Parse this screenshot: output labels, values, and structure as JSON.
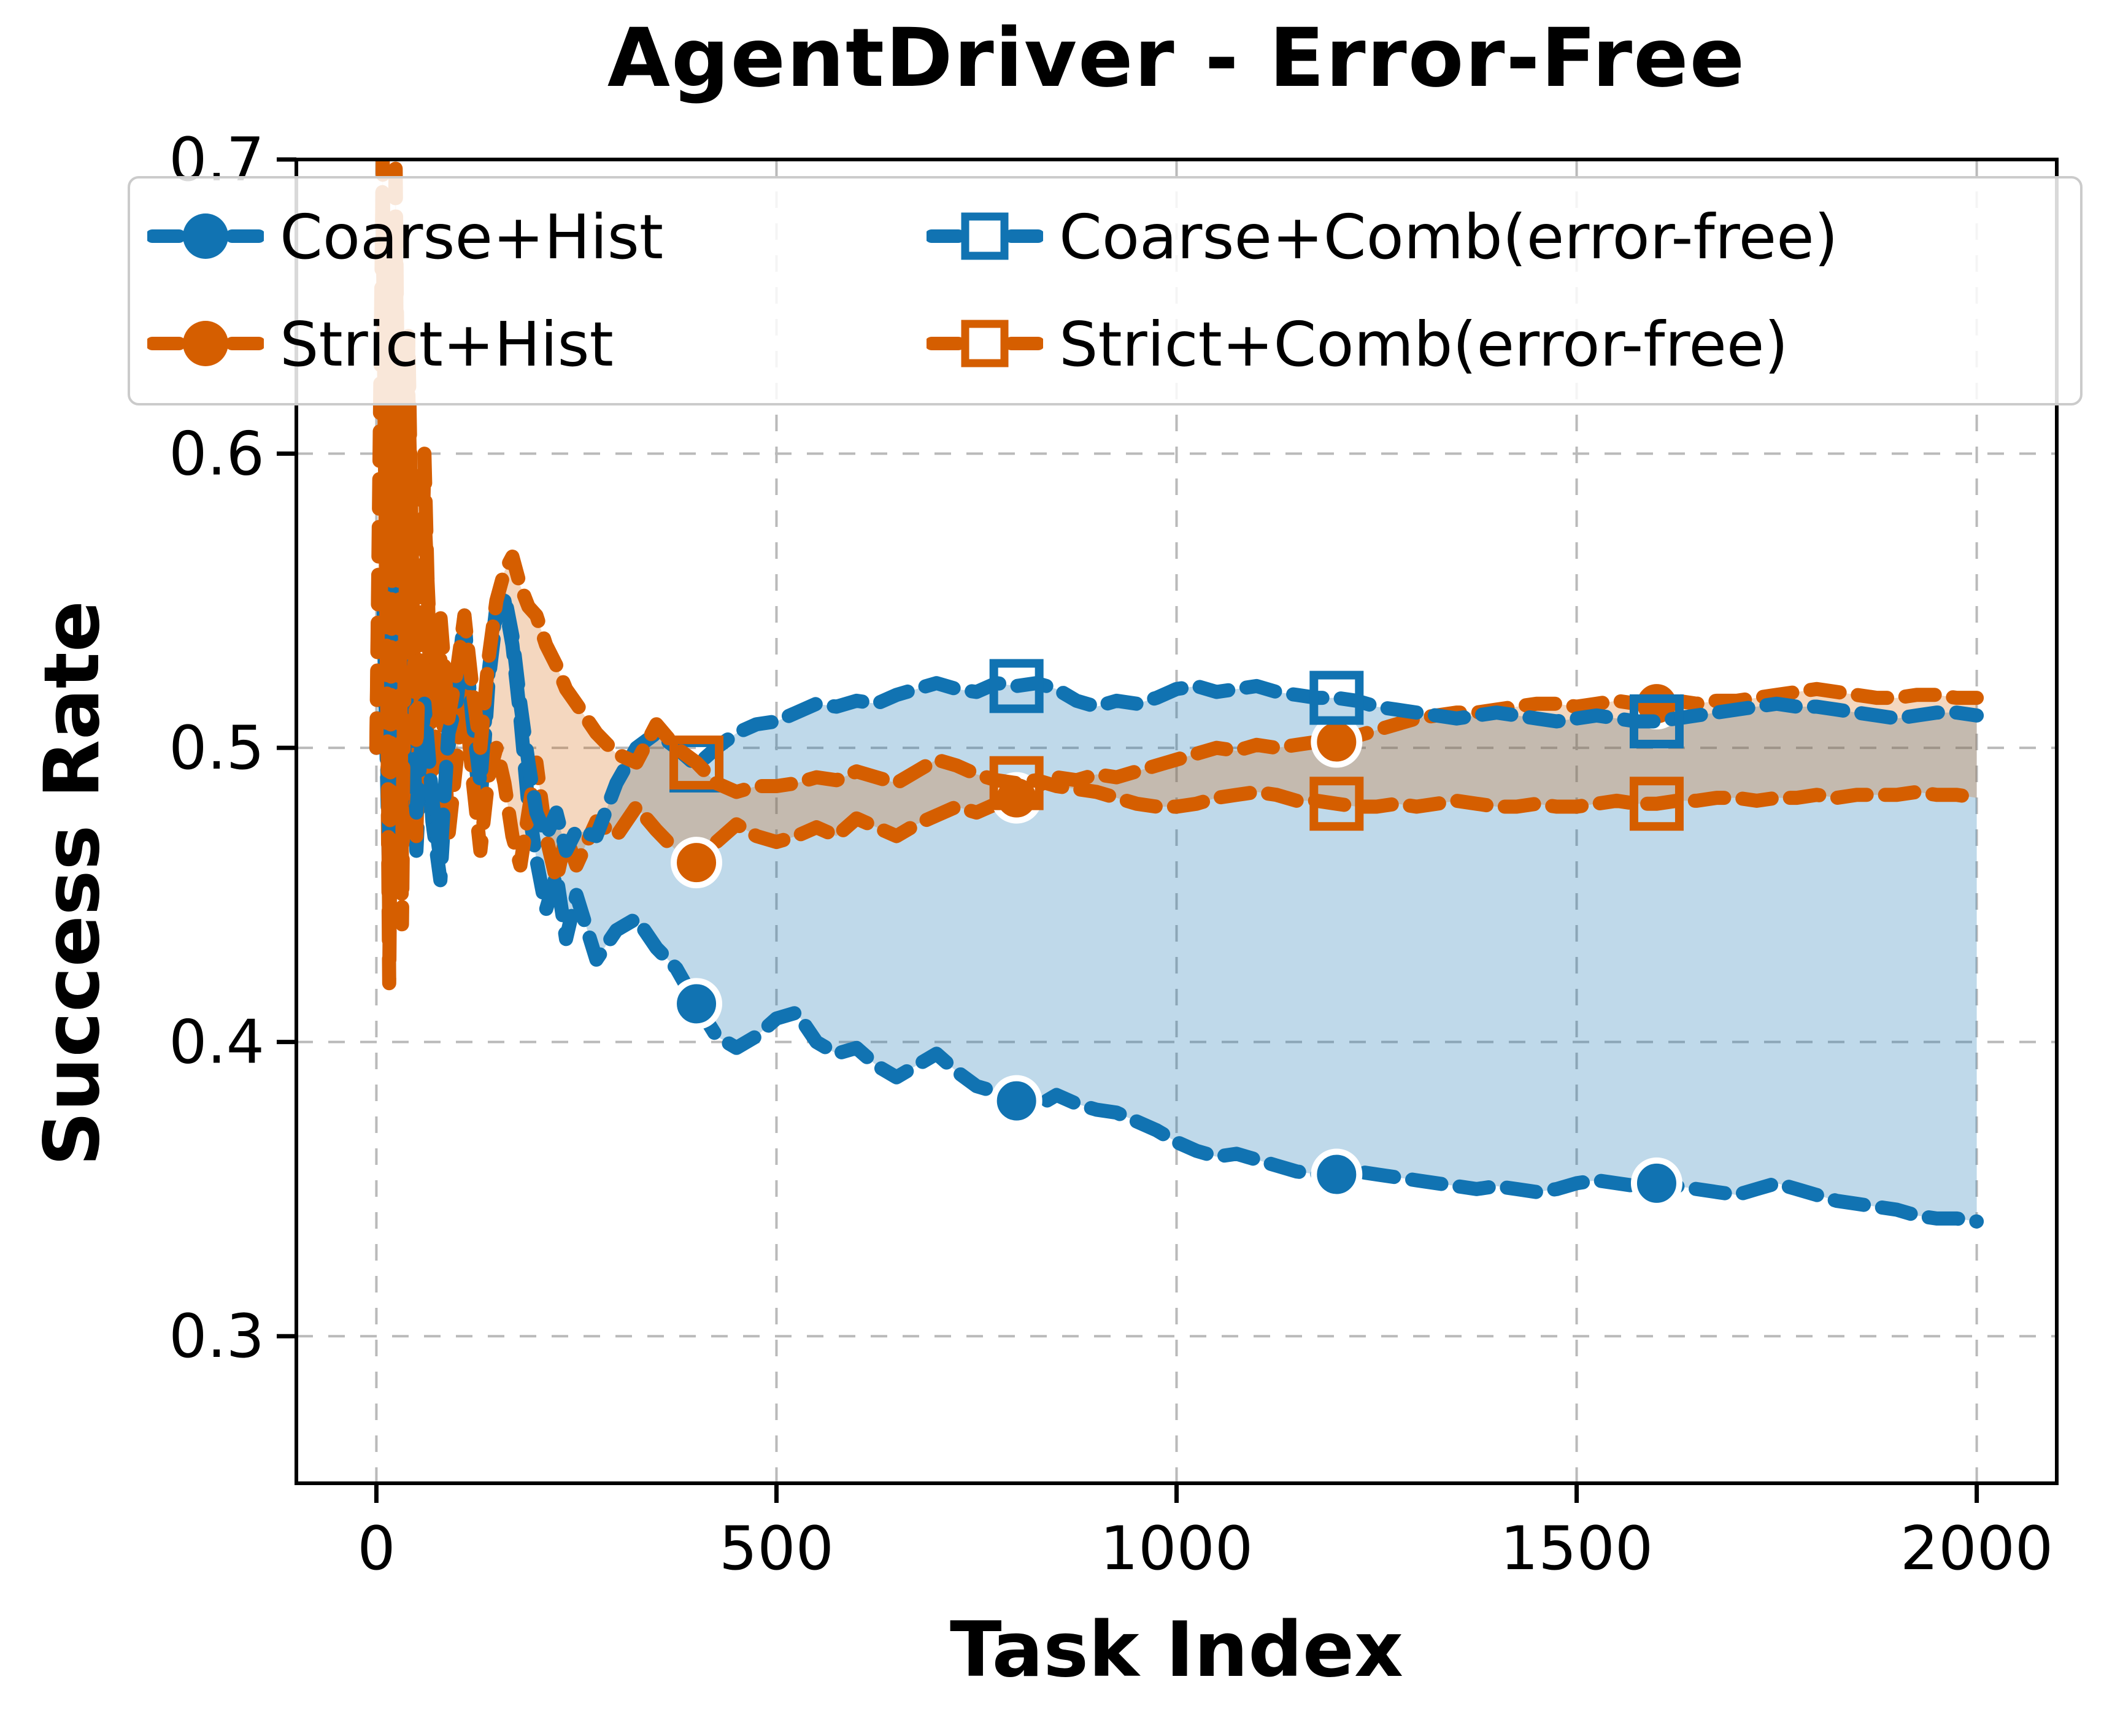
{
  "title": "AgentDriver - Error-Free",
  "axes": {
    "xlabel": "Task Index",
    "ylabel": "Success Rate",
    "xlim": [
      -100,
      2100
    ],
    "ylim": [
      0.25,
      0.7
    ],
    "xticks": [
      0,
      500,
      1000,
      1500,
      2000
    ],
    "yticks": [
      0.3,
      0.4,
      0.5,
      0.6,
      0.7
    ],
    "grid": true
  },
  "colors": {
    "blue": "#1173b2",
    "orange": "#d55e00",
    "blue_fill": "rgba(17,115,178,0.27)",
    "orange_fill": "rgba(213,94,0,0.25)",
    "grid": "#bababa",
    "spine": "#000000",
    "legend_border": "#cbcbcb"
  },
  "legend": {
    "items": [
      {
        "label": "Coarse+Hist",
        "color": "#1173b2",
        "marker": "circle"
      },
      {
        "label": "Strict+Hist",
        "color": "#d55e00",
        "marker": "circle"
      },
      {
        "label": "Coarse+Comb(error-free)",
        "color": "#1173b2",
        "marker": "square"
      },
      {
        "label": "Strict+Comb(error-free)",
        "color": "#d55e00",
        "marker": "square"
      }
    ]
  },
  "chart_data": {
    "type": "line",
    "title": "AgentDriver - Error-Free",
    "xlabel": "Task Index",
    "ylabel": "Success Rate",
    "xlim": [
      -100,
      2100
    ],
    "ylim": [
      0.25,
      0.7
    ],
    "legend_position": "upper center, 2 columns",
    "x": [
      0,
      8,
      16,
      24,
      32,
      40,
      50,
      60,
      70,
      80,
      90,
      100,
      110,
      120,
      130,
      140,
      150,
      160,
      170,
      180,
      190,
      200,
      212,
      225,
      237,
      250,
      275,
      300,
      325,
      350,
      375,
      400,
      425,
      450,
      475,
      500,
      525,
      550,
      575,
      600,
      625,
      650,
      675,
      700,
      725,
      750,
      775,
      800,
      825,
      850,
      875,
      900,
      925,
      950,
      975,
      1000,
      1025,
      1050,
      1075,
      1100,
      1125,
      1150,
      1175,
      1200,
      1225,
      1250,
      1275,
      1300,
      1325,
      1350,
      1375,
      1400,
      1425,
      1450,
      1475,
      1500,
      1525,
      1550,
      1575,
      1600,
      1625,
      1650,
      1675,
      1700,
      1725,
      1750,
      1775,
      1800,
      1825,
      1850,
      1875,
      1900,
      1925,
      1950,
      1975,
      2000
    ],
    "series": [
      {
        "name": "Coarse+Hist",
        "color": "#1173b2",
        "marker": "circle",
        "markers_at": [
          400,
          800,
          1200,
          1600
        ],
        "values": [
          0.5,
          0.56,
          0.455,
          0.585,
          0.47,
          0.54,
          0.465,
          0.52,
          0.475,
          0.455,
          0.5,
          0.52,
          0.545,
          0.505,
          0.48,
          0.522,
          0.545,
          0.55,
          0.535,
          0.51,
          0.48,
          0.462,
          0.445,
          0.457,
          0.435,
          0.45,
          0.428,
          0.438,
          0.442,
          0.432,
          0.425,
          0.413,
          0.402,
          0.398,
          0.402,
          0.408,
          0.41,
          0.4,
          0.396,
          0.398,
          0.392,
          0.388,
          0.392,
          0.396,
          0.39,
          0.385,
          0.383,
          0.38,
          0.378,
          0.382,
          0.379,
          0.377,
          0.376,
          0.373,
          0.37,
          0.366,
          0.363,
          0.361,
          0.362,
          0.36,
          0.358,
          0.356,
          0.355,
          0.355,
          0.356,
          0.355,
          0.354,
          0.353,
          0.352,
          0.351,
          0.35,
          0.351,
          0.35,
          0.349,
          0.35,
          0.352,
          0.353,
          0.352,
          0.351,
          0.352,
          0.351,
          0.35,
          0.349,
          0.348,
          0.35,
          0.352,
          0.35,
          0.348,
          0.346,
          0.345,
          0.344,
          0.343,
          0.341,
          0.34,
          0.34,
          0.339
        ]
      },
      {
        "name": "Strict+Hist",
        "color": "#d55e00",
        "marker": "circle",
        "markers_at": [
          400,
          800,
          1200,
          1600
        ],
        "values": [
          0.5,
          0.7,
          0.42,
          0.68,
          0.44,
          0.64,
          0.47,
          0.6,
          0.49,
          0.53,
          0.47,
          0.495,
          0.52,
          0.49,
          0.465,
          0.49,
          0.5,
          0.488,
          0.47,
          0.46,
          0.478,
          0.495,
          0.47,
          0.455,
          0.47,
          0.46,
          0.475,
          0.47,
          0.48,
          0.472,
          0.465,
          0.461,
          0.468,
          0.474,
          0.47,
          0.468,
          0.47,
          0.473,
          0.47,
          0.476,
          0.473,
          0.47,
          0.474,
          0.477,
          0.48,
          0.478,
          0.481,
          0.483,
          0.487,
          0.49,
          0.489,
          0.491,
          0.49,
          0.492,
          0.494,
          0.496,
          0.498,
          0.5,
          0.499,
          0.501,
          0.5,
          0.501,
          0.502,
          0.502,
          0.504,
          0.506,
          0.508,
          0.51,
          0.511,
          0.512,
          0.512,
          0.513,
          0.514,
          0.515,
          0.515,
          0.514,
          0.515,
          0.516,
          0.515,
          0.515,
          0.516,
          0.515,
          0.516,
          0.516,
          0.517,
          0.518,
          0.519,
          0.52,
          0.519,
          0.518,
          0.517,
          0.517,
          0.518,
          0.518,
          0.517,
          0.517
        ]
      },
      {
        "name": "Coarse+Comb(error-free)",
        "color": "#1173b2",
        "marker": "square",
        "markers_at": [
          400,
          800,
          1200,
          1600
        ],
        "values": [
          0.5,
          0.545,
          0.47,
          0.56,
          0.48,
          0.53,
          0.478,
          0.515,
          0.482,
          0.462,
          0.505,
          0.515,
          0.54,
          0.51,
          0.488,
          0.525,
          0.548,
          0.552,
          0.538,
          0.515,
          0.495,
          0.478,
          0.47,
          0.478,
          0.465,
          0.472,
          0.47,
          0.488,
          0.5,
          0.505,
          0.5,
          0.494,
          0.5,
          0.505,
          0.508,
          0.509,
          0.512,
          0.515,
          0.514,
          0.516,
          0.515,
          0.518,
          0.52,
          0.522,
          0.52,
          0.519,
          0.522,
          0.521,
          0.522,
          0.52,
          0.516,
          0.514,
          0.516,
          0.515,
          0.517,
          0.52,
          0.521,
          0.519,
          0.52,
          0.521,
          0.519,
          0.518,
          0.517,
          0.517,
          0.516,
          0.514,
          0.513,
          0.512,
          0.511,
          0.51,
          0.511,
          0.512,
          0.511,
          0.51,
          0.509,
          0.51,
          0.511,
          0.51,
          0.509,
          0.509,
          0.51,
          0.511,
          0.512,
          0.513,
          0.514,
          0.515,
          0.514,
          0.514,
          0.513,
          0.512,
          0.511,
          0.51,
          0.511,
          0.512,
          0.512,
          0.511
        ]
      },
      {
        "name": "Strict+Comb(error-free)",
        "color": "#d55e00",
        "marker": "square",
        "markers_at": [
          400,
          800,
          1200,
          1600
        ],
        "values": [
          0.5,
          0.68,
          0.44,
          0.7,
          0.46,
          0.62,
          0.5,
          0.58,
          0.52,
          0.545,
          0.51,
          0.525,
          0.545,
          0.52,
          0.5,
          0.53,
          0.55,
          0.56,
          0.565,
          0.555,
          0.548,
          0.545,
          0.535,
          0.528,
          0.52,
          0.515,
          0.505,
          0.498,
          0.495,
          0.508,
          0.5,
          0.495,
          0.488,
          0.485,
          0.487,
          0.487,
          0.488,
          0.49,
          0.489,
          0.492,
          0.49,
          0.488,
          0.492,
          0.496,
          0.494,
          0.491,
          0.489,
          0.488,
          0.489,
          0.487,
          0.486,
          0.485,
          0.483,
          0.481,
          0.48,
          0.48,
          0.481,
          0.483,
          0.484,
          0.485,
          0.484,
          0.482,
          0.482,
          0.481,
          0.48,
          0.48,
          0.481,
          0.48,
          0.481,
          0.482,
          0.481,
          0.48,
          0.48,
          0.481,
          0.48,
          0.48,
          0.481,
          0.482,
          0.481,
          0.481,
          0.482,
          0.482,
          0.483,
          0.483,
          0.482,
          0.483,
          0.483,
          0.484,
          0.483,
          0.484,
          0.484,
          0.484,
          0.485,
          0.484,
          0.484,
          0.483
        ]
      }
    ],
    "fills": [
      {
        "between": [
          "Coarse+Hist",
          "Coarse+Comb(error-free)"
        ],
        "color": "rgba(17,115,178,0.27)"
      },
      {
        "between": [
          "Strict+Hist",
          "Strict+Comb(error-free)"
        ],
        "color": "rgba(213,94,0,0.25)"
      }
    ]
  }
}
